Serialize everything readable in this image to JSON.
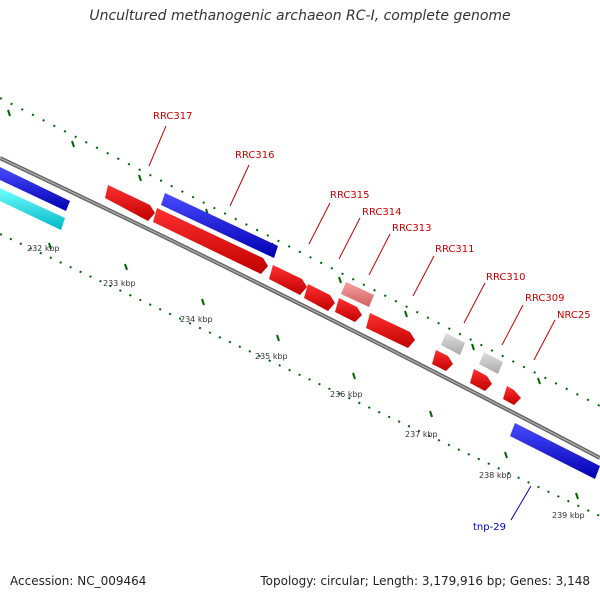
{
  "title": "Uncultured methanogenic archaeon RC-I, complete genome",
  "footer": {
    "accession": "Accession: NC_009464",
    "summary": "Topology: circular; Length: 3,179,916 bp; Genes: 3,148"
  },
  "scale_labels": [
    "232 kbp",
    "233 kbp",
    "234 kbp",
    "235 kbp",
    "236 kbp",
    "237 kbp",
    "238 kbp",
    "239 kbp"
  ],
  "gene_labels": [
    "RRC317",
    "RRC316",
    "RRC315",
    "RRC314",
    "RRC313",
    "RRC311",
    "RRC310",
    "RRC309",
    "NRC25",
    "tnp-29"
  ],
  "colors": {
    "forward_cds": "#0000ee",
    "reverse_cds": "#ee0000",
    "light_cds": "#f08080",
    "other_feature": "#c8c8c8",
    "cyan_feature": "#00e5ee",
    "backbone": "#808080",
    "ticks": "#006400",
    "reverse_label": "#cc0000",
    "forward_label": "#0000cc"
  }
}
